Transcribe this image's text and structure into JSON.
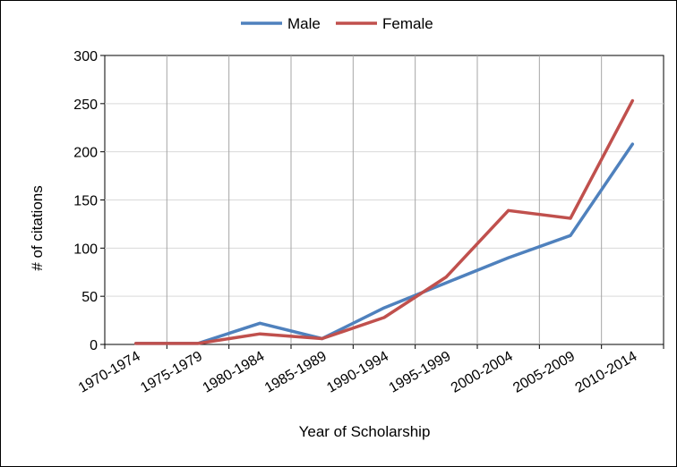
{
  "chart_data": {
    "type": "line",
    "title": "",
    "xlabel": "Year of Scholarship",
    "ylabel": "# of citations",
    "categories": [
      "1970-1974",
      "1975-1979",
      "1980-1984",
      "1985-1989",
      "1990-1994",
      "1995-1999",
      "2000-2004",
      "2005-2009",
      "2010-2014"
    ],
    "series": [
      {
        "name": "Male",
        "color": "#4f81bd",
        "values": [
          1,
          1,
          22,
          6,
          38,
          64,
          90,
          113,
          208
        ]
      },
      {
        "name": "Female",
        "color": "#c0504d",
        "values": [
          1,
          1,
          11,
          6,
          28,
          70,
          139,
          131,
          253
        ]
      }
    ],
    "ylim": [
      0,
      300
    ],
    "yticks": [
      0,
      50,
      100,
      150,
      200,
      250,
      300
    ],
    "grid": true,
    "legend": "top-center"
  }
}
